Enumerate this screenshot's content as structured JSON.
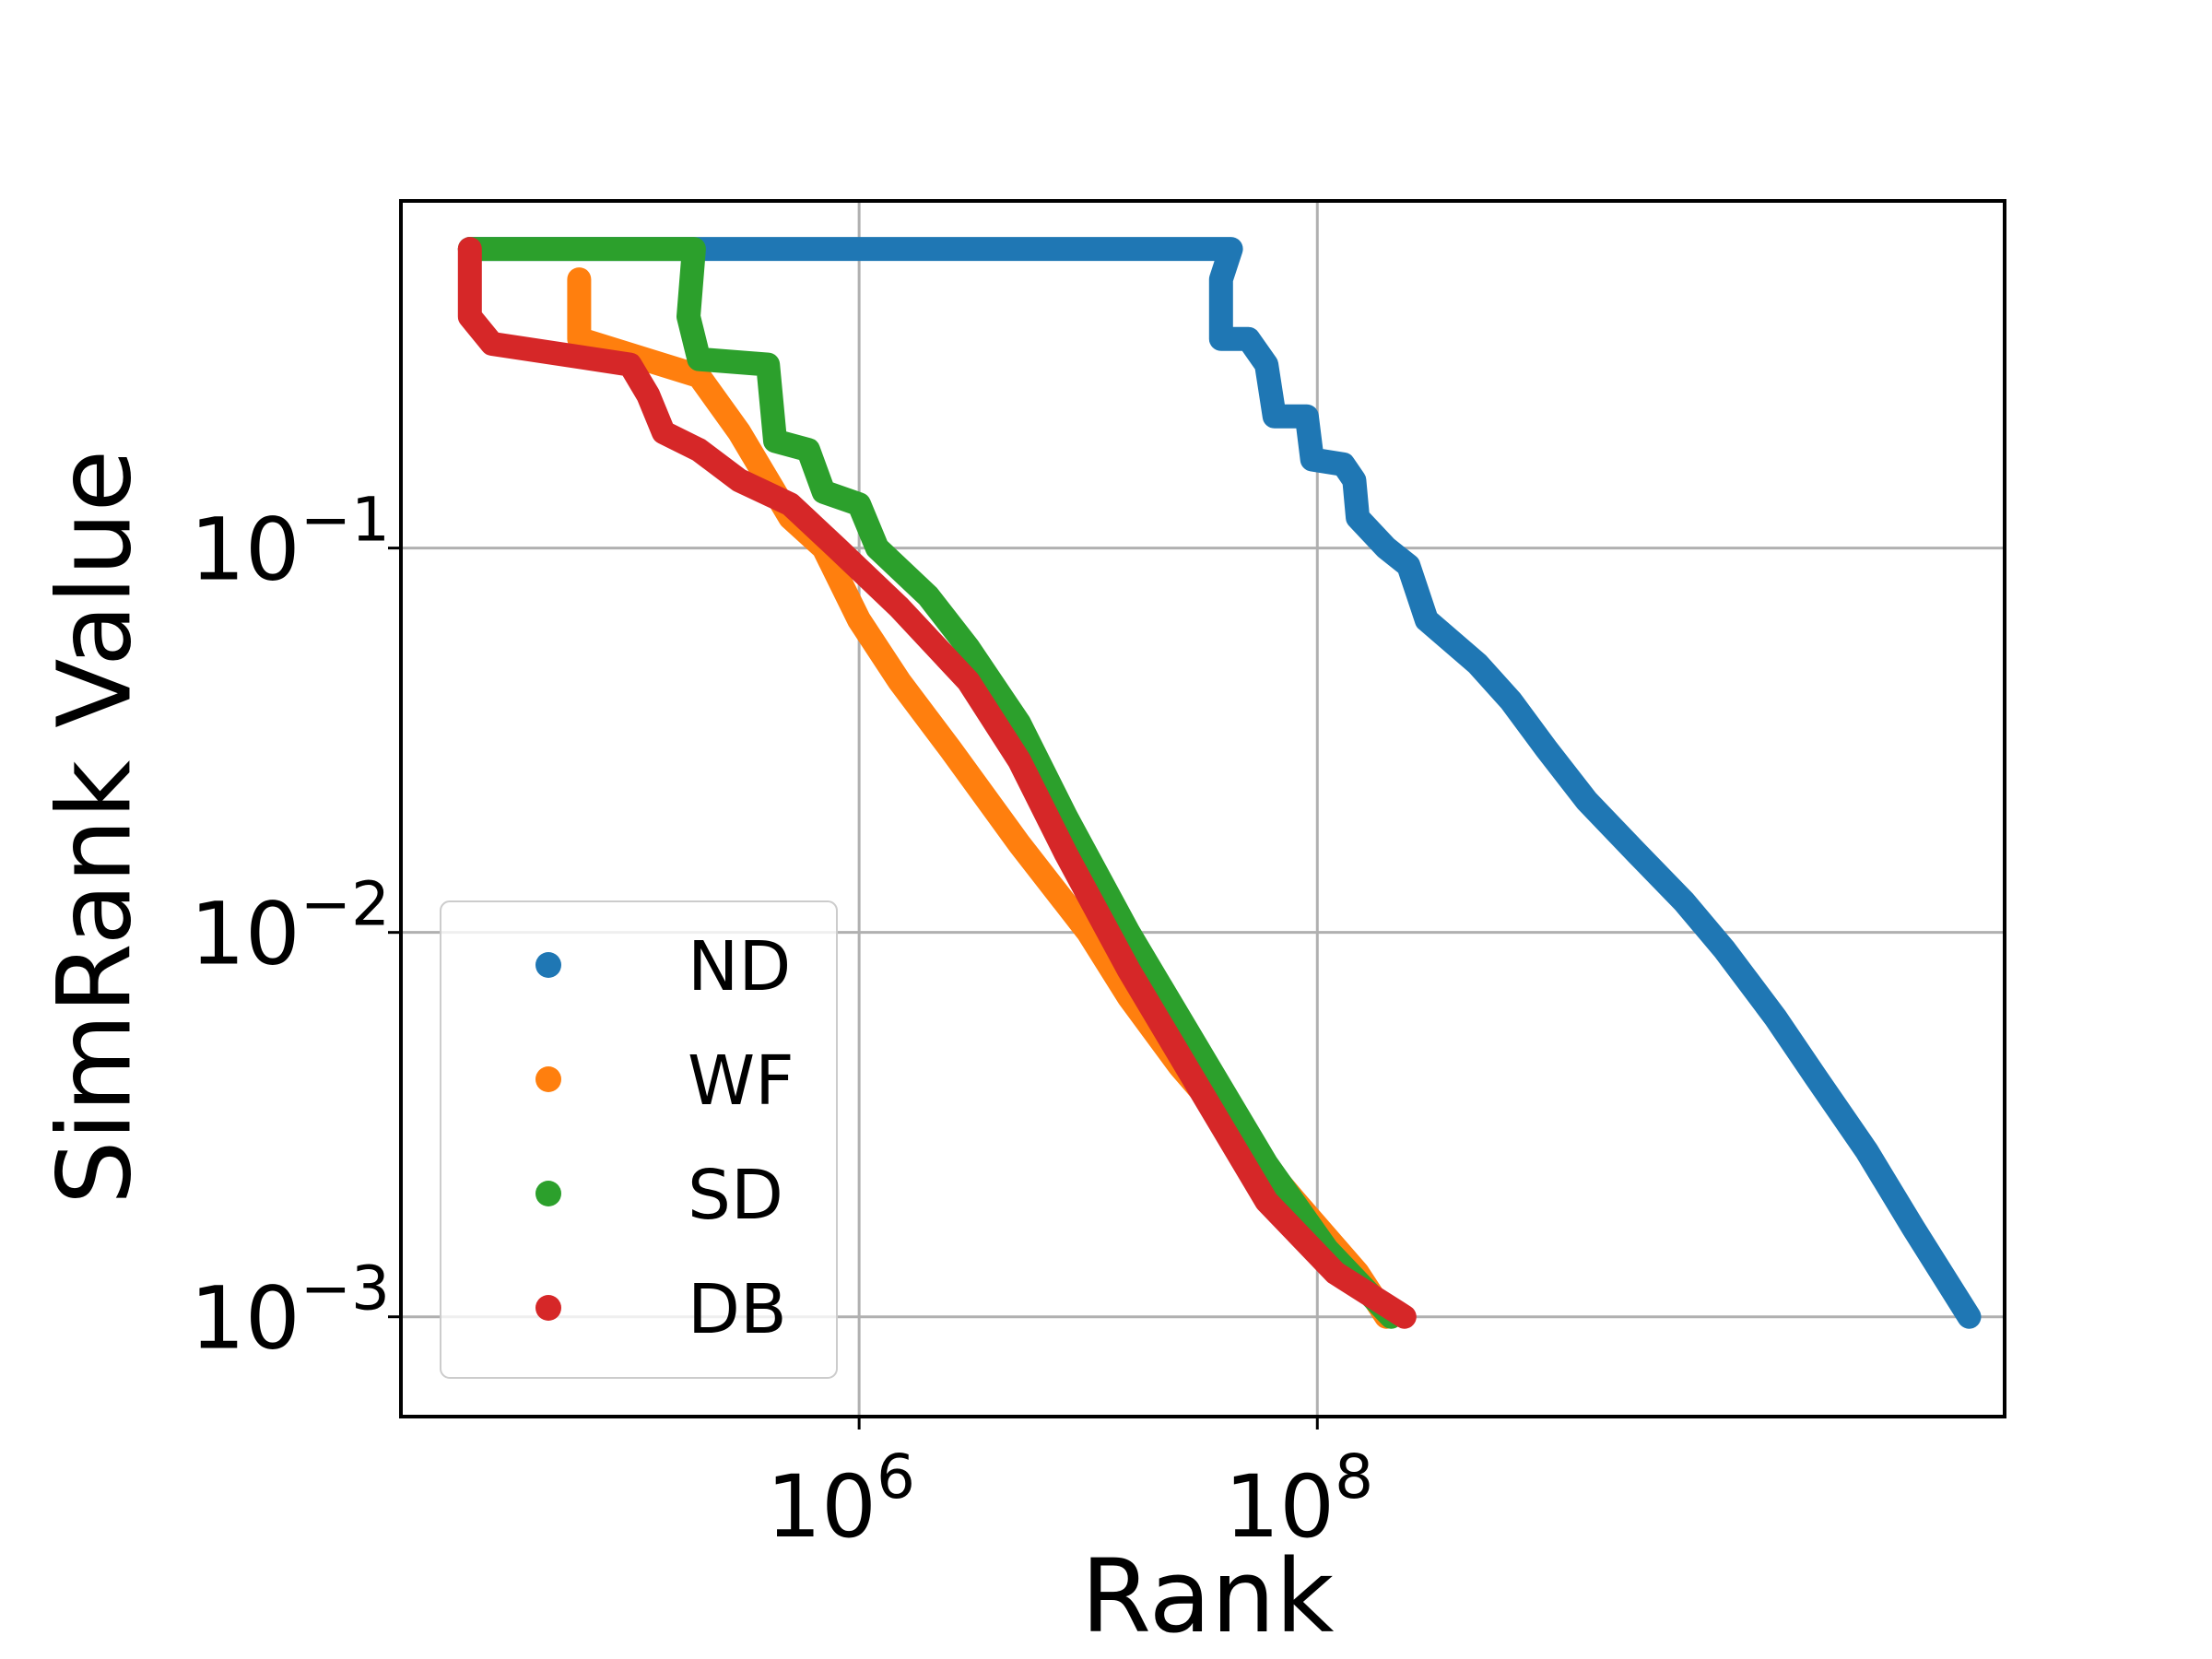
{
  "chart_data": {
    "type": "scatter",
    "title": "",
    "xlabel": "Rank",
    "ylabel": "SimRank Value",
    "xscale": "log",
    "yscale": "log",
    "xlim": [
      10000,
      100000000000
    ],
    "ylim": [
      0.00055,
      0.8
    ],
    "grid": true,
    "legend_position": "lower-left",
    "x_ticks": [
      {
        "base": "10",
        "exp": "6",
        "value": 1000000
      },
      {
        "base": "10",
        "exp": "8",
        "value": 100000000
      }
    ],
    "y_ticks": [
      {
        "base": "10",
        "exp": "−1",
        "value": 0.1
      },
      {
        "base": "10",
        "exp": "−2",
        "value": 0.01
      },
      {
        "base": "10",
        "exp": "−3",
        "value": 0.001
      }
    ],
    "series": [
      {
        "name": "ND",
        "color": "#1f77b4",
        "points": [
          [
            20000,
            0.6
          ],
          [
            42000000,
            0.6
          ],
          [
            38000000,
            0.5
          ],
          [
            38000000,
            0.35
          ],
          [
            50000000,
            0.35
          ],
          [
            60000000,
            0.3
          ],
          [
            65000000,
            0.22
          ],
          [
            90000000,
            0.22
          ],
          [
            95000000,
            0.17
          ],
          [
            130000000,
            0.165
          ],
          [
            145000000,
            0.15
          ],
          [
            150000000,
            0.12
          ],
          [
            200000000,
            0.1
          ],
          [
            250000000,
            0.09
          ],
          [
            300000000,
            0.065
          ],
          [
            500000000,
            0.05
          ],
          [
            700000000,
            0.04
          ],
          [
            1000000000,
            0.03
          ],
          [
            1500000000,
            0.022
          ],
          [
            2500000000,
            0.016
          ],
          [
            4000000000,
            0.012
          ],
          [
            6000000000,
            0.009
          ],
          [
            10000000000,
            0.006
          ],
          [
            15000000000,
            0.0042
          ],
          [
            25000000000,
            0.0027
          ],
          [
            40000000000,
            0.0017
          ],
          [
            70000000000,
            0.001
          ]
        ]
      },
      {
        "name": "WF",
        "color": "#ff7f0e",
        "points": [
          [
            60000,
            0.5
          ],
          [
            60000,
            0.35
          ],
          [
            200000,
            0.28
          ],
          [
            300000,
            0.2
          ],
          [
            400000,
            0.15
          ],
          [
            500000,
            0.12
          ],
          [
            700000,
            0.1
          ],
          [
            1000000,
            0.065
          ],
          [
            1500000,
            0.045
          ],
          [
            2500000,
            0.03
          ],
          [
            5000000,
            0.017
          ],
          [
            10000000,
            0.01
          ],
          [
            15000000,
            0.0068
          ],
          [
            25000000,
            0.0045
          ],
          [
            45000000,
            0.003
          ],
          [
            80000000,
            0.002
          ],
          [
            150000000,
            0.0013
          ],
          [
            200000000,
            0.001
          ]
        ]
      },
      {
        "name": "SD",
        "color": "#2ca02c",
        "points": [
          [
            20000,
            0.6
          ],
          [
            190000,
            0.6
          ],
          [
            180000,
            0.4
          ],
          [
            200000,
            0.31
          ],
          [
            400000,
            0.3
          ],
          [
            430000,
            0.19
          ],
          [
            600000,
            0.18
          ],
          [
            700000,
            0.14
          ],
          [
            1000000,
            0.13
          ],
          [
            1200000,
            0.1
          ],
          [
            2000000,
            0.075
          ],
          [
            3000000,
            0.055
          ],
          [
            5000000,
            0.035
          ],
          [
            8000000,
            0.02
          ],
          [
            15000000,
            0.01
          ],
          [
            30000000,
            0.005
          ],
          [
            60000000,
            0.0025
          ],
          [
            110000000,
            0.0015
          ],
          [
            210000000,
            0.001
          ]
        ]
      },
      {
        "name": "DB",
        "color": "#d62728",
        "points": [
          [
            20000,
            0.6
          ],
          [
            20000,
            0.4
          ],
          [
            25000,
            0.34
          ],
          [
            100000,
            0.3
          ],
          [
            120000,
            0.25
          ],
          [
            140000,
            0.2
          ],
          [
            200000,
            0.18
          ],
          [
            300000,
            0.15
          ],
          [
            500000,
            0.13
          ],
          [
            800000,
            0.1
          ],
          [
            1500000,
            0.07
          ],
          [
            3000000,
            0.045
          ],
          [
            5000000,
            0.028
          ],
          [
            8000000,
            0.016
          ],
          [
            15000000,
            0.008
          ],
          [
            30000000,
            0.004
          ],
          [
            60000000,
            0.002
          ],
          [
            120000000,
            0.0013
          ],
          [
            240000000,
            0.001
          ]
        ]
      }
    ]
  }
}
